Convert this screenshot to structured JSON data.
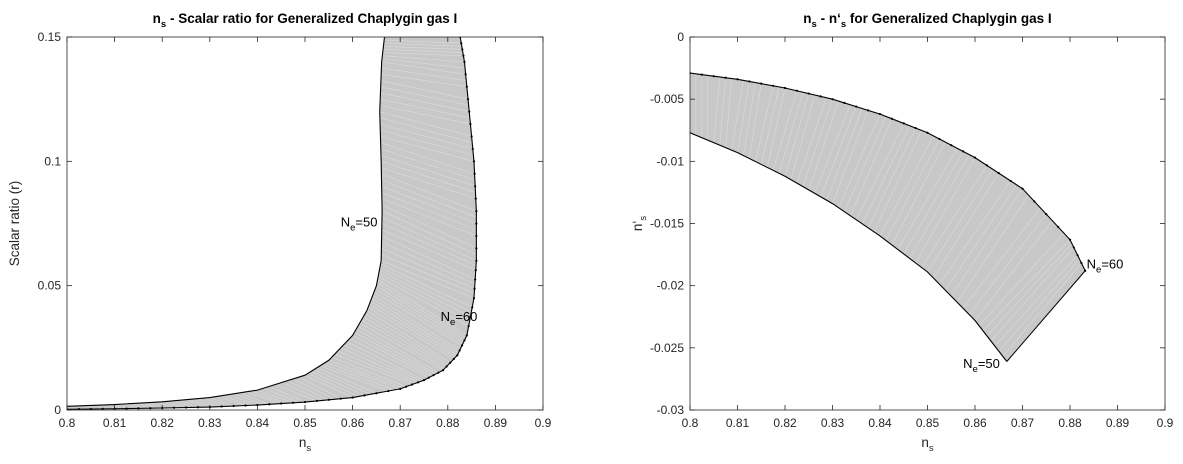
{
  "chart_data": [
    {
      "type": "area",
      "title": "n_s - Scalar ratio for Generalized Chaplygin gas I",
      "title_parts": {
        "pre": "n",
        "sub": "s",
        "post": " - Scalar ratio for Generalized Chaplygin gas I"
      },
      "xlabel": "n_s",
      "xlabel_parts": {
        "pre": "n",
        "sub": "s"
      },
      "ylabel": "Scalar ratio (r)",
      "xlim": [
        0.8,
        0.9
      ],
      "ylim": [
        0,
        0.15
      ],
      "xticks": [
        0.8,
        0.81,
        0.82,
        0.83,
        0.84,
        0.85,
        0.86,
        0.87,
        0.88,
        0.89,
        0.9
      ],
      "yticks": [
        0,
        0.05,
        0.1,
        0.15
      ],
      "xtick_labels": [
        "0.8",
        "0.81",
        "0.82",
        "0.83",
        "0.84",
        "0.85",
        "0.86",
        "0.87",
        "0.88",
        "0.89",
        "0.9"
      ],
      "ytick_labels": [
        "0",
        "0.05",
        "0.1",
        "0.15"
      ],
      "grid": false,
      "fill_color": "#c8c8c8",
      "line_color": "#000000",
      "series": [
        {
          "name": "N_e=50",
          "x": [
            0.8,
            0.81,
            0.82,
            0.83,
            0.84,
            0.85,
            0.855,
            0.86,
            0.863,
            0.865,
            0.866,
            0.8662,
            0.866,
            0.8657,
            0.8661,
            0.8667
          ],
          "y": [
            0.0015,
            0.0022,
            0.0033,
            0.005,
            0.008,
            0.014,
            0.02,
            0.03,
            0.04,
            0.05,
            0.06,
            0.08,
            0.1,
            0.12,
            0.14,
            0.15
          ]
        },
        {
          "name": "N_e=60",
          "x": [
            0.8,
            0.81,
            0.82,
            0.83,
            0.84,
            0.85,
            0.86,
            0.87,
            0.875,
            0.879,
            0.882,
            0.884,
            0.8855,
            0.886,
            0.886,
            0.8855,
            0.8845,
            0.8835,
            0.8826
          ],
          "y": [
            0.0003,
            0.0005,
            0.0008,
            0.0012,
            0.002,
            0.0032,
            0.005,
            0.0085,
            0.012,
            0.016,
            0.022,
            0.03,
            0.045,
            0.06,
            0.08,
            0.1,
            0.12,
            0.14,
            0.15
          ]
        }
      ],
      "annotations": [
        {
          "pre": "N",
          "sub": "e",
          "post": "=50",
          "x": 0.8575,
          "y": 0.0755
        },
        {
          "pre": "N",
          "sub": "e",
          "post": "=60",
          "x": 0.8785,
          "y": 0.0375
        }
      ]
    },
    {
      "type": "area",
      "title": "n_s - n'_s for Generalized Chaplygin gas I",
      "title_parts": {
        "pre": "n",
        "sub": "s",
        "mid": " - n‘",
        "sub2": "s",
        "post": " for Generalized Chaplygin gas I"
      },
      "xlabel": "n_s",
      "xlabel_parts": {
        "pre": "n",
        "sub": "s"
      },
      "ylabel": "n'_s",
      "ylabel_parts": {
        "pre": "n‘",
        "sub": "s"
      },
      "xlim": [
        0.8,
        0.9
      ],
      "ylim": [
        -0.03,
        0
      ],
      "xticks": [
        0.8,
        0.81,
        0.82,
        0.83,
        0.84,
        0.85,
        0.86,
        0.87,
        0.88,
        0.89,
        0.9
      ],
      "yticks": [
        -0.03,
        -0.025,
        -0.02,
        -0.015,
        -0.01,
        -0.005,
        0
      ],
      "xtick_labels": [
        "0.8",
        "0.81",
        "0.82",
        "0.83",
        "0.84",
        "0.85",
        "0.86",
        "0.87",
        "0.88",
        "0.89",
        "0.9"
      ],
      "ytick_labels": [
        "-0.03",
        "-0.025",
        "-0.02",
        "-0.015",
        "-0.01",
        "-0.005",
        "0"
      ],
      "grid": false,
      "fill_color": "#c8c8c8",
      "line_color": "#000000",
      "series": [
        {
          "name": "N_e=50",
          "x": [
            0.8,
            0.81,
            0.82,
            0.83,
            0.84,
            0.85,
            0.86,
            0.8667
          ],
          "y": [
            -0.0077,
            -0.0093,
            -0.0112,
            -0.0134,
            -0.016,
            -0.0189,
            -0.0228,
            -0.0261
          ]
        },
        {
          "name": "N_e=60",
          "x": [
            0.8,
            0.81,
            0.82,
            0.83,
            0.84,
            0.85,
            0.86,
            0.87,
            0.88,
            0.8832
          ],
          "y": [
            -0.0029,
            -0.0034,
            -0.0041,
            -0.005,
            -0.0062,
            -0.0077,
            -0.0097,
            -0.0122,
            -0.0163,
            -0.0188
          ]
        }
      ],
      "annotations": [
        {
          "pre": "N",
          "sub": "e",
          "post": "=60",
          "x": 0.8835,
          "y": -0.0183
        },
        {
          "pre": "N",
          "sub": "e",
          "post": "=50",
          "x": 0.8575,
          "y": -0.0263
        }
      ]
    }
  ]
}
